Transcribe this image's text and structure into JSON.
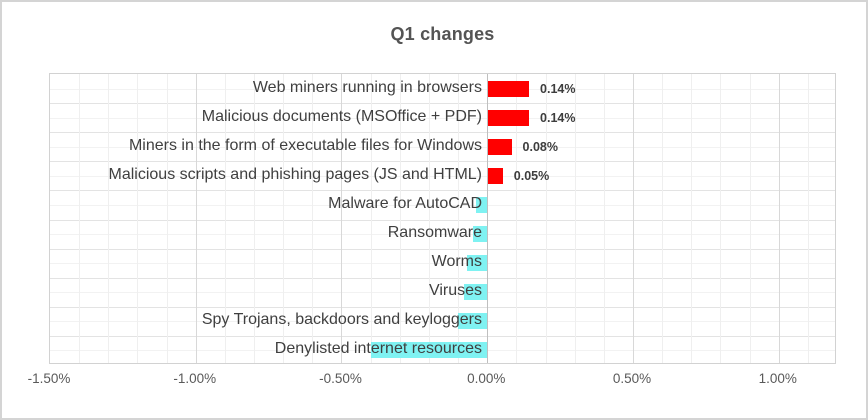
{
  "chart_data": {
    "type": "bar",
    "orientation": "horizontal",
    "title": "Q1 changes",
    "categories": [
      "Web miners running in browsers",
      "Malicious documents (MSOffice + PDF)",
      "Miners in the form of executable files for Windows",
      "Malicious scripts and phishing pages (JS and HTML)",
      "Malware for AutoCAD",
      "Ransomware",
      "Worms",
      "Viruses",
      "Spy Trojans, backdoors and keyloggers",
      "Denylisted internet resources"
    ],
    "values": [
      0.14,
      0.14,
      0.08,
      0.05,
      -0.04,
      -0.05,
      -0.07,
      -0.08,
      -0.1,
      -0.4
    ],
    "data_labels": [
      "0.14%",
      "0.14%",
      "0.08%",
      "0.05%",
      "",
      "",
      "",
      "",
      "",
      ""
    ],
    "value_unit": "%",
    "xlim": [
      -1.5,
      1.2
    ],
    "x_ticks": [
      {
        "value": -1.5,
        "label": "-1.50%"
      },
      {
        "value": -1.0,
        "label": "-1.00%"
      },
      {
        "value": -0.5,
        "label": "-0.50%"
      },
      {
        "value": 0.0,
        "label": "0.00%"
      },
      {
        "value": 0.5,
        "label": "0.50%"
      },
      {
        "value": 1.0,
        "label": "1.00%"
      }
    ],
    "minor_step": 0.1,
    "major_step": 0.5,
    "positive_color": "#ff0000",
    "negative_color": "#7ff2f2",
    "grid": true,
    "legend": false
  }
}
